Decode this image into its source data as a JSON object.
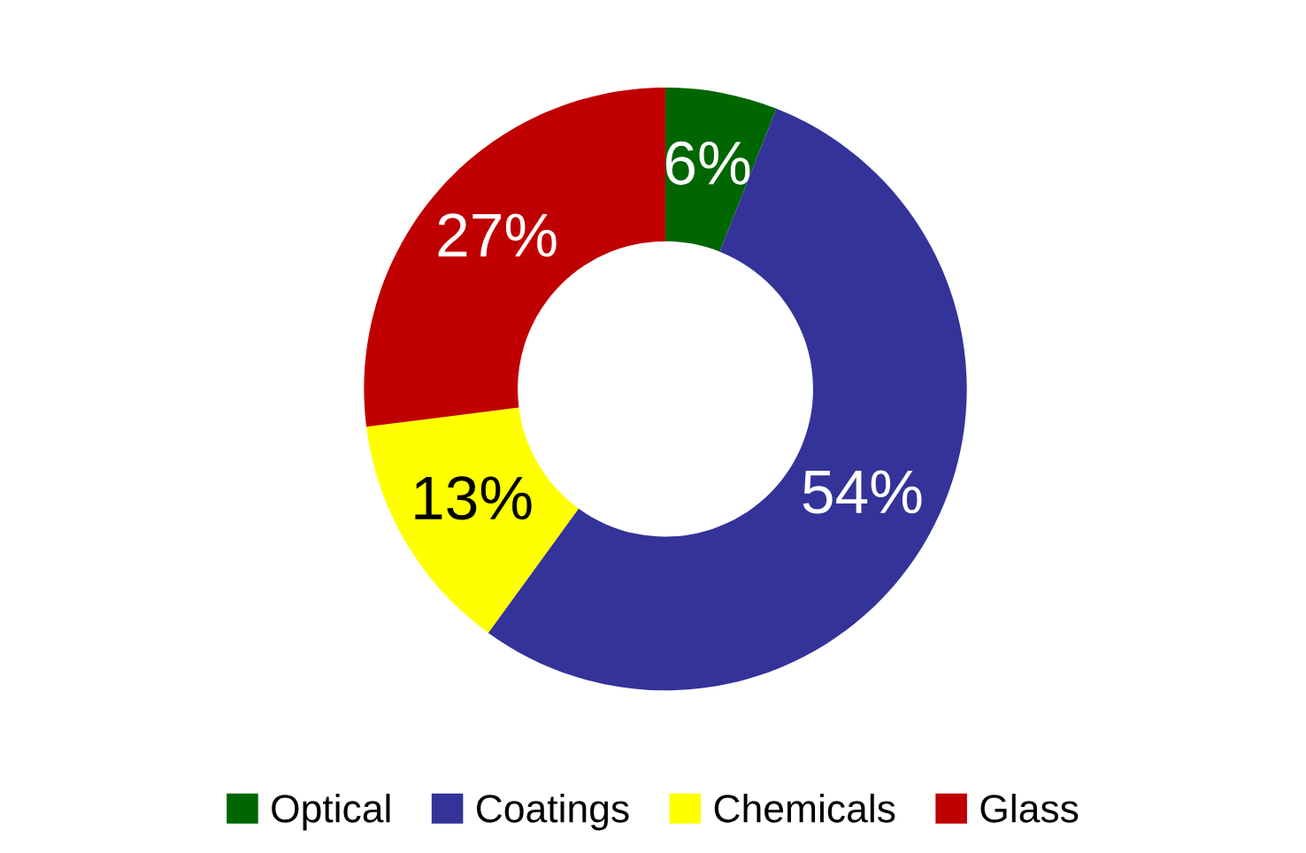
{
  "chart_data": {
    "type": "donut",
    "categories": [
      "Optical",
      "Coatings",
      "Chemicals",
      "Glass"
    ],
    "values": [
      6,
      54,
      13,
      27
    ],
    "colors": [
      "#006600",
      "#333399",
      "#ffff00",
      "#c00000"
    ],
    "value_labels": [
      "6%",
      "54%",
      "13%",
      "27%"
    ],
    "legend": "bottom"
  }
}
